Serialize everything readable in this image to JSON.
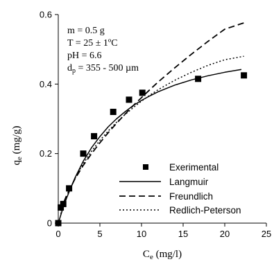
{
  "chart_data": {
    "type": "scatter",
    "xlabel": "Ce (mg/l)",
    "xlabel_main": "C",
    "xlabel_sub": "e",
    "xlabel_unit": " (mg/l)",
    "ylabel": "qe (mg/g)",
    "ylabel_main": "q",
    "ylabel_sub": "e",
    "ylabel_unit": " (mg/g)",
    "xlim": [
      0,
      25
    ],
    "ylim": [
      0,
      0.6
    ],
    "xticks": [
      0,
      5,
      10,
      15,
      20,
      25
    ],
    "yticks": [
      0,
      0.2,
      0.4,
      0.6
    ],
    "xtick_labels": [
      "0",
      "5",
      "10",
      "15",
      "20",
      "25"
    ],
    "ytick_labels": [
      "0",
      "0.2",
      "0.4",
      "0.6"
    ],
    "grid": false,
    "legend_position": "bottom-right",
    "conditions": {
      "mass": "m = 0.5 g",
      "temperature": "T = 25 ± 1ºC",
      "ph": "pH = 6.6",
      "particle_main": "d",
      "particle_sub": "p",
      "particle_rest": " = 355 - 500 µm"
    },
    "series": [
      {
        "name": "Exerimental",
        "style": "marker",
        "color": "#000000",
        "x": [
          0,
          0.3,
          0.6,
          1.3,
          3.0,
          4.3,
          6.6,
          8.5,
          10.1,
          16.8,
          22.3
        ],
        "y": [
          0.0,
          0.045,
          0.055,
          0.1,
          0.2,
          0.25,
          0.32,
          0.355,
          0.375,
          0.415,
          0.425
        ]
      },
      {
        "name": "Langmuir",
        "style": "solid",
        "color": "#000000",
        "x": [
          0,
          0.5,
          1,
          2,
          3,
          4,
          5,
          6,
          7,
          8,
          9,
          10,
          11,
          12,
          14,
          16,
          18,
          20,
          22
        ],
        "y": [
          0,
          0.038,
          0.072,
          0.13,
          0.178,
          0.217,
          0.249,
          0.277,
          0.3,
          0.32,
          0.338,
          0.353,
          0.366,
          0.378,
          0.397,
          0.412,
          0.424,
          0.434,
          0.442
        ]
      },
      {
        "name": "Freundlich",
        "style": "dashed",
        "color": "#000000",
        "x": [
          0.3,
          0.5,
          1,
          2,
          3,
          4,
          5,
          6,
          7,
          8,
          9,
          10,
          11,
          12,
          14,
          16,
          18,
          20,
          22.3
        ],
        "y": [
          0.035,
          0.05,
          0.08,
          0.127,
          0.166,
          0.2,
          0.231,
          0.26,
          0.287,
          0.313,
          0.338,
          0.361,
          0.384,
          0.406,
          0.447,
          0.486,
          0.523,
          0.558,
          0.576
        ]
      },
      {
        "name": "Redlich-Peterson",
        "style": "dotted",
        "color": "#000000",
        "x": [
          0.3,
          0.5,
          1,
          2,
          3,
          4,
          5,
          6,
          7,
          8,
          9,
          10,
          11,
          12,
          14,
          16,
          18,
          20,
          22.3
        ],
        "y": [
          0.027,
          0.042,
          0.075,
          0.128,
          0.171,
          0.207,
          0.238,
          0.265,
          0.29,
          0.312,
          0.332,
          0.351,
          0.368,
          0.384,
          0.411,
          0.434,
          0.454,
          0.47,
          0.48
        ]
      }
    ]
  }
}
